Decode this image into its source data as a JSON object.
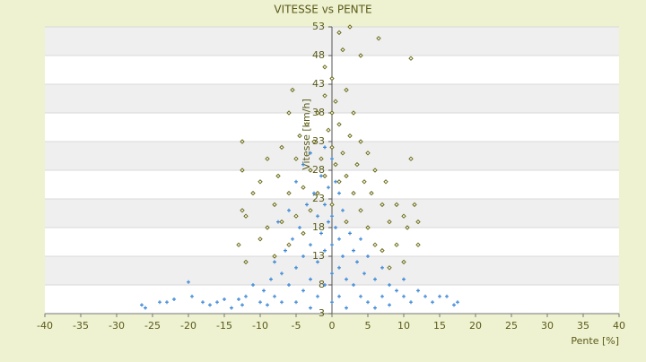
{
  "chart_data": {
    "type": "scatter",
    "title": "VITESSE vs PENTE",
    "x_label": "Pente [%]",
    "y_label": "Vitesse [km/h]",
    "xlim": [
      -40,
      40
    ],
    "xticks": [
      -40,
      -35,
      -30,
      -25,
      -20,
      -15,
      -10,
      -5,
      0,
      5,
      10,
      15,
      20,
      25,
      30,
      35,
      40
    ],
    "ylim": [
      3,
      53
    ],
    "yticks": [
      3,
      8,
      13,
      18,
      23,
      28,
      33,
      38,
      43,
      48,
      53
    ],
    "grid": true,
    "band_color": "#efefef",
    "series": [
      {
        "color": "#3a86d6",
        "marker": "plus",
        "x": [
          -26.5,
          -26,
          -24,
          -23,
          -22,
          -20,
          -19.5,
          -18,
          -17,
          -16,
          -15,
          -14,
          -13,
          -12.5,
          -12,
          -11,
          -10,
          -9.5,
          -9,
          -8.5,
          -8,
          -8,
          -7.5,
          -7,
          -7,
          -6.5,
          -6,
          -6,
          -5.5,
          -5,
          -5,
          -5,
          -4.5,
          -4,
          -4,
          -4,
          -3.5,
          -3,
          -3,
          -3,
          -3,
          -2.5,
          -2,
          -2,
          -2,
          -1.5,
          -1.5,
          -1,
          -1,
          -1,
          -1,
          -0.5,
          -0.5,
          0,
          0,
          0,
          0,
          0,
          0.5,
          0.5,
          1,
          1,
          1,
          1,
          1.5,
          1.5,
          2,
          2,
          2,
          2.5,
          3,
          3,
          3.5,
          4,
          4,
          4.5,
          5,
          5,
          6,
          6,
          7,
          7,
          8,
          8,
          9,
          10,
          10,
          11,
          12,
          13,
          14,
          15,
          16,
          17,
          17.5
        ],
        "values": [
          4.5,
          4,
          5,
          5,
          5.5,
          8.5,
          6,
          5,
          4.5,
          5,
          5.5,
          4,
          5.5,
          4.5,
          6,
          8,
          5,
          7,
          4.5,
          9,
          12,
          6,
          19,
          10,
          5,
          14,
          21,
          8,
          16,
          26,
          11,
          5,
          18,
          29,
          13,
          7,
          22,
          31,
          15,
          9,
          4,
          24,
          20,
          12,
          6,
          27,
          17,
          32,
          22,
          14,
          8,
          19,
          25,
          30,
          20,
          15,
          10,
          5,
          26,
          18,
          24,
          16,
          11,
          6,
          21,
          13,
          19,
          9,
          4,
          17,
          14,
          8,
          12,
          16,
          6,
          10,
          13,
          5,
          9,
          4,
          11,
          6,
          8,
          4.5,
          7,
          6,
          9,
          5,
          7,
          6,
          5,
          6,
          6,
          4.5,
          5
        ]
      },
      {
        "color": "#6b6b1a",
        "marker": "diamond",
        "x": [
          -13,
          -12.5,
          -12.5,
          -12,
          -12,
          -12.5,
          -11,
          -10,
          -10,
          -9,
          -9,
          -8,
          -8,
          -7.5,
          -7,
          -7,
          -6,
          -6,
          -6,
          -5.5,
          -5,
          -5,
          -4.5,
          -4,
          -4,
          -3.5,
          -3,
          -3,
          -2.5,
          -2,
          -2,
          -1.5,
          -1,
          -1,
          -1,
          -0.5,
          0,
          0,
          0,
          0,
          0.5,
          0.5,
          1,
          1,
          1,
          1.5,
          1.5,
          2,
          2,
          2,
          2.5,
          2.5,
          3,
          3,
          3.5,
          4,
          4,
          4,
          4.5,
          5,
          5,
          5.5,
          6,
          6,
          6.5,
          7,
          7,
          7.5,
          8,
          8,
          9,
          9,
          10,
          10,
          10.5,
          11,
          11,
          11.5,
          12,
          12
        ],
        "values": [
          15,
          28,
          33,
          20,
          12,
          21,
          24,
          16,
          26,
          18,
          30,
          22,
          13,
          27,
          19,
          32,
          24,
          38,
          15,
          42,
          20,
          30,
          34,
          17,
          25,
          36,
          21,
          28,
          33,
          38,
          24,
          30,
          46,
          41,
          27,
          35,
          44,
          38,
          32,
          22,
          40,
          29,
          52,
          36,
          26,
          49,
          31,
          42,
          27,
          19,
          34,
          53,
          24,
          38,
          29,
          21,
          48,
          33,
          26,
          31,
          18,
          24,
          28,
          15,
          51,
          22,
          14,
          26,
          19,
          11,
          22,
          15,
          12,
          20,
          18,
          47.5,
          30,
          22,
          19,
          15
        ]
      }
    ]
  }
}
